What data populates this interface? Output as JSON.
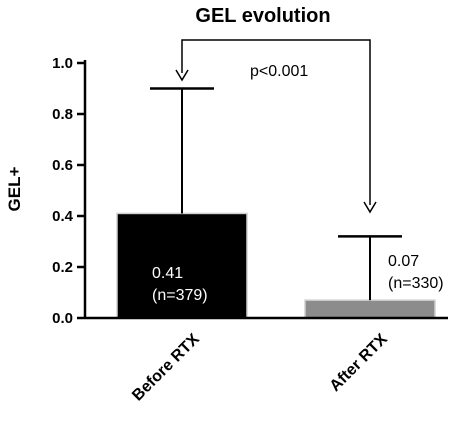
{
  "chart_data": {
    "type": "bar",
    "title": "GEL evolution",
    "xlabel": "",
    "ylabel": "GEL+",
    "ylim": [
      0,
      1.0
    ],
    "yticks": [
      "0.0",
      "0.2",
      "0.4",
      "0.6",
      "0.8",
      "1.0"
    ],
    "categories": [
      "Before RTX",
      "After RTX"
    ],
    "values": [
      0.41,
      0.07
    ],
    "error_upper": [
      0.9,
      0.32
    ],
    "bar_labels": [
      {
        "value": "0.41",
        "n": "(n=379)"
      },
      {
        "value": "0.07",
        "n": "(n=330)"
      }
    ],
    "significance": "p<0.001",
    "colors": {
      "bar_before": "#000000",
      "bar_after": "#8c8c8c",
      "label_on_dark": "#ffffff",
      "label_on_light": "#000000"
    },
    "grid": false
  }
}
